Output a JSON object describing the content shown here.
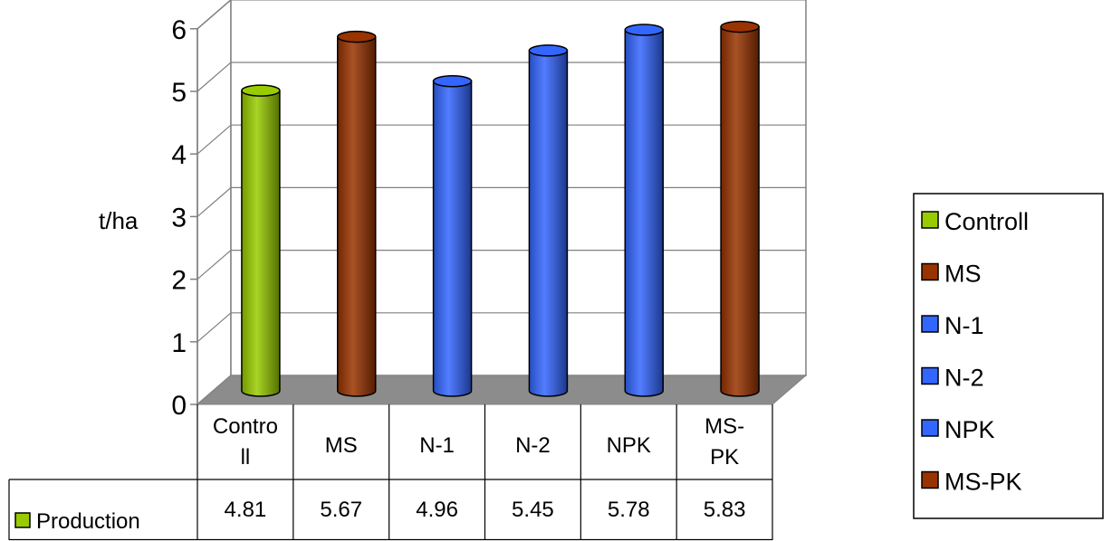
{
  "chart_data": {
    "type": "bar",
    "title": "",
    "xlabel": "",
    "ylabel": "t/ha",
    "ylim": [
      0,
      6
    ],
    "yticks": [
      "0",
      "1",
      "2",
      "3",
      "4",
      "5",
      "6"
    ],
    "grid": true,
    "legend_position": "right",
    "categories": [
      {
        "lines": [
          "Contro",
          "ll"
        ],
        "legend": "Controll",
        "color": "#99cc00"
      },
      {
        "lines": [
          "MS"
        ],
        "legend": "MS",
        "color": "#993300"
      },
      {
        "lines": [
          "N-1"
        ],
        "legend": "N-1",
        "color": "#3366ff"
      },
      {
        "lines": [
          "N-2"
        ],
        "legend": "N-2",
        "color": "#3366ff"
      },
      {
        "lines": [
          "NPK"
        ],
        "legend": "NPK",
        "color": "#3366ff"
      },
      {
        "lines": [
          "MS-",
          "PK"
        ],
        "legend": "MS-PK",
        "color": "#993300"
      }
    ],
    "series": [
      {
        "name": "Production",
        "values": [
          4.81,
          5.67,
          4.96,
          5.45,
          5.78,
          5.83
        ],
        "value_labels": [
          "4.81",
          "5.67",
          "4.96",
          "5.45",
          "5.78",
          "5.83"
        ]
      }
    ]
  }
}
